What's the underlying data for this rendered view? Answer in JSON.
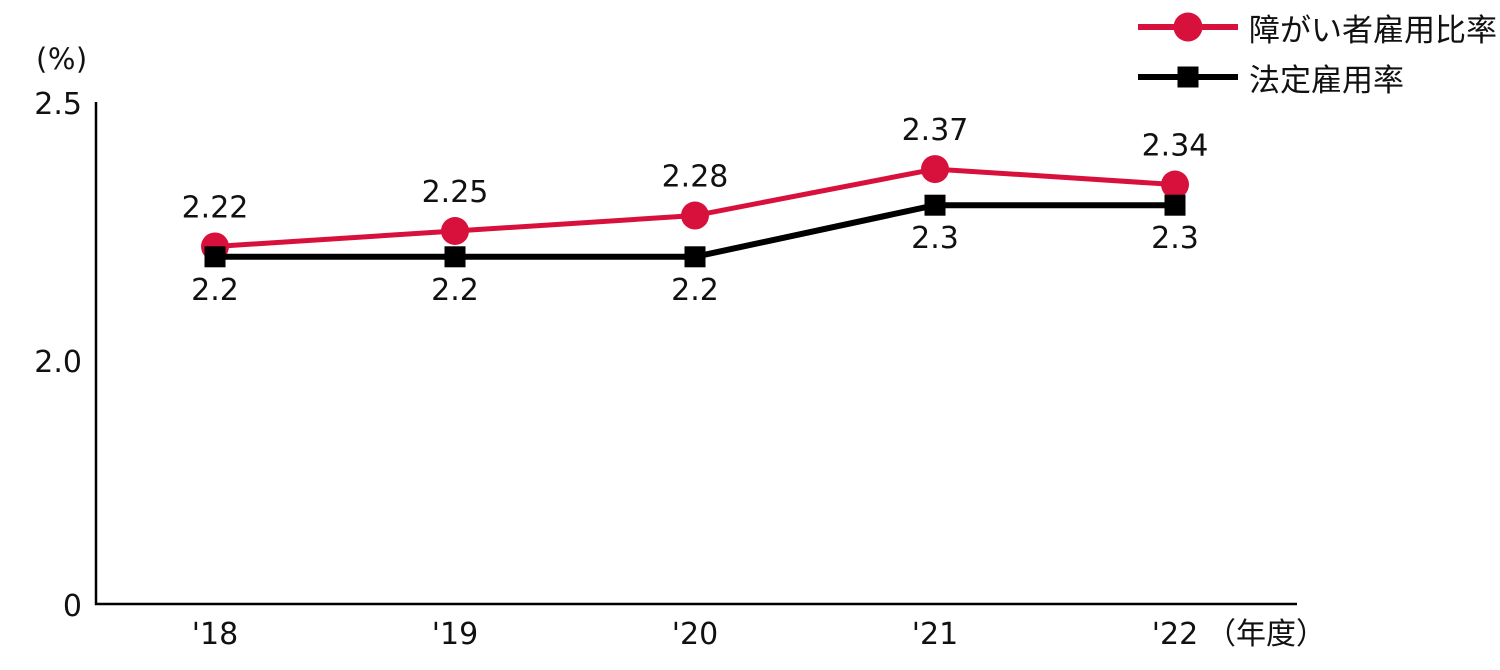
{
  "chart_data": {
    "type": "line",
    "title": "",
    "y_unit_label": "(%)",
    "x_unit_label": "（年度）",
    "categories": [
      "'18",
      "'19",
      "'20",
      "'21",
      "'22"
    ],
    "series": [
      {
        "name": "障がい者雇用比率",
        "marker": "circle",
        "color": "#d8103c",
        "values": [
          2.22,
          2.25,
          2.28,
          2.37,
          2.34
        ],
        "labels": [
          "2.22",
          "2.25",
          "2.28",
          "2.37",
          "2.34"
        ],
        "label_position": "above"
      },
      {
        "name": "法定雇用率",
        "marker": "square",
        "color": "#000000",
        "values": [
          2.2,
          2.2,
          2.2,
          2.3,
          2.3
        ],
        "labels": [
          "2.2",
          "2.2",
          "2.2",
          "2.3",
          "2.3"
        ],
        "label_position": "below"
      }
    ],
    "y_ticks": [
      {
        "label": "2.5",
        "value": 2.5
      },
      {
        "label": "2.0",
        "value": 2.0
      },
      {
        "label": "0",
        "value": 0
      }
    ],
    "y_axis_note": "broken scale: 2.0-2.5 expanded, 0-2.0 compressed",
    "legend_position": "top-right",
    "grid": false,
    "axis_color": "#000000",
    "text_color": "#111111"
  }
}
